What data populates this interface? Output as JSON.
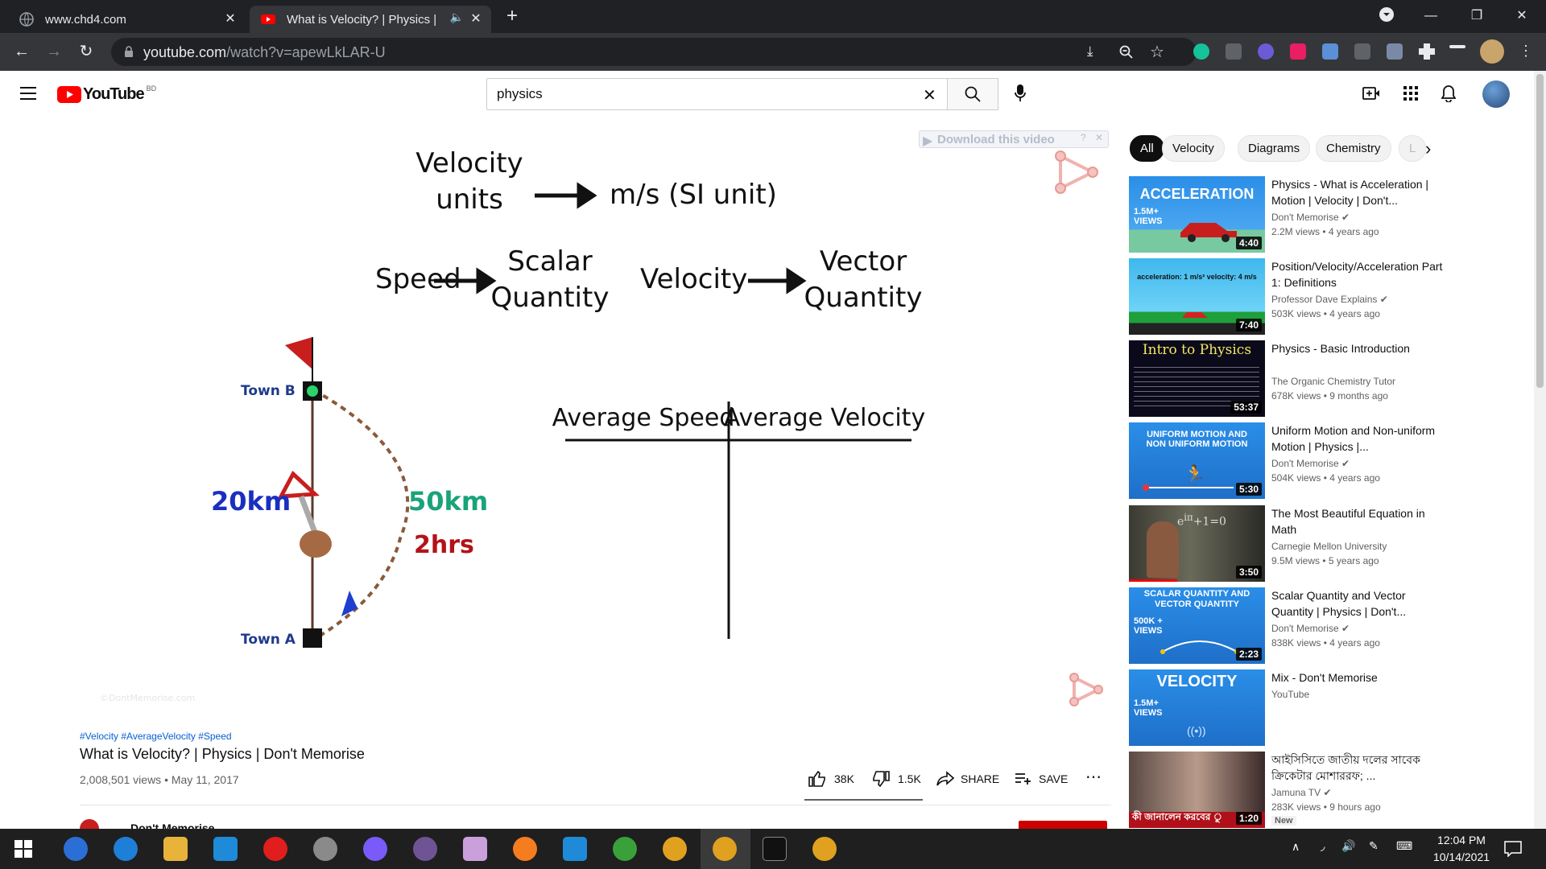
{
  "browser": {
    "tabs": [
      {
        "title": "www.chd4.com"
      },
      {
        "title": "What is Velocity? | Physics | D"
      }
    ],
    "url_host": "youtube.com",
    "url_path": "/watch?v=apewLkLAR-U"
  },
  "youtube": {
    "logo_text": "YouTube",
    "region": "BD",
    "search_value": "physics"
  },
  "video": {
    "download_overlay": "Download this video",
    "slide": {
      "line1_left_a": "Velocity",
      "line1_left_b": "units",
      "line1_right": "m/s  (SI unit)",
      "speed": "Speed",
      "scalar_a": "Scalar",
      "scalar_b": "Quantity",
      "velocity": "Velocity",
      "vector_a": "Vector",
      "vector_b": "Quantity",
      "town_b": "Town B",
      "town_a": "Town A",
      "dist_straight": "20km",
      "dist_curve": "50km",
      "time": "2hrs",
      "table_left": "Average Speed",
      "table_right": "Average Velocity",
      "watermark": "©DontMemorise.com"
    },
    "hashtags": "#Velocity #AverageVelocity #Speed",
    "title": "What is Velocity? | Physics | Don't Memorise",
    "views_date": "2,008,501 views • May 11, 2017",
    "likes": "38K",
    "dislikes": "1.5K",
    "share": "SHARE",
    "save": "SAVE",
    "channel_partial": "Don't Memorise"
  },
  "chips": [
    "All",
    "Velocity",
    "Diagrams",
    "Chemistry",
    "L"
  ],
  "recommendations": [
    {
      "title": "Physics - What is Acceleration | Motion | Velocity | Don't...",
      "channel": "Don't Memorise",
      "verified": true,
      "meta": "2.2M views • 4 years ago",
      "duration": "4:40",
      "thumb_text": "ACCELERATION",
      "badge": "1.5M+ VIEWS"
    },
    {
      "title": "Position/Velocity/Acceleration Part 1: Definitions",
      "channel": "Professor Dave Explains",
      "verified": true,
      "meta": "503K views • 4 years ago",
      "duration": "7:40",
      "thumb_text": "acceleration: 1 m/s²   velocity: 4 m/s"
    },
    {
      "title": "Physics - Basic Introduction",
      "channel": "The Organic Chemistry Tutor",
      "verified": false,
      "meta": "678K views • 9 months ago",
      "duration": "53:37",
      "thumb_text": "Intro to Physics"
    },
    {
      "title": "Uniform Motion and Non-uniform Motion | Physics |...",
      "channel": "Don't Memorise",
      "verified": true,
      "meta": "504K views • 4 years ago",
      "duration": "5:30",
      "thumb_text": "UNIFORM MOTION AND NON UNIFORM MOTION"
    },
    {
      "title": "The Most Beautiful Equation in Math",
      "channel": "Carnegie Mellon University",
      "verified": false,
      "meta": "9.5M views • 5 years ago",
      "duration": "3:50",
      "thumb_text": ""
    },
    {
      "title": "Scalar Quantity and Vector Quantity | Physics | Don't...",
      "channel": "Don't Memorise",
      "verified": true,
      "meta": "838K views • 4 years ago",
      "duration": "2:23",
      "thumb_text": "SCALAR QUANTITY AND VECTOR QUANTITY",
      "badge": "500K + VIEWS"
    },
    {
      "title": "Mix - Don't Memorise",
      "channel": "YouTube",
      "verified": false,
      "meta": "",
      "duration": "",
      "thumb_text": "VELOCITY",
      "badge": "1.5M+ VIEWS"
    },
    {
      "title": "আইসিসিতে জাতীয় দলের সাবেক ক্রিকেটার মোশাররফ; ...",
      "channel": "Jamuna TV",
      "verified": true,
      "meta": "283K views • 9 hours ago",
      "duration": "1:20",
      "thumb_text": "কী জানালেন করবের ু",
      "badge_new": "New"
    }
  ],
  "taskbar": {
    "time": "12:04 PM",
    "date": "10/14/2021"
  },
  "colors": {
    "yt_red": "#ff0000",
    "chrome_dark": "#202124",
    "chrome_toolbar": "#35363a",
    "town_label": "#1f3a8a",
    "dist_blue": "#1a2fc0",
    "dist_green": "#1aa37a",
    "time_red": "#b3121a"
  }
}
